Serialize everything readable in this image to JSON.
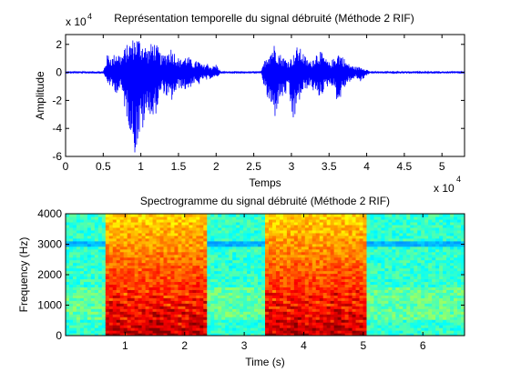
{
  "chart_data": [
    {
      "type": "line",
      "title": "Représentation temporelle du signal débruité (Méthode 2 RIF)",
      "xlabel": "Temps",
      "ylabel": "Amplitude",
      "xlim": [
        0,
        53000
      ],
      "ylim": [
        -60000,
        27000
      ],
      "x_ticks": [
        0,
        5000,
        10000,
        15000,
        20000,
        25000,
        30000,
        35000,
        40000,
        45000,
        50000
      ],
      "x_tick_labels": [
        "0",
        "0.5",
        "1",
        "1.5",
        "2",
        "2.5",
        "3",
        "3.5",
        "4",
        "4.5",
        "5"
      ],
      "x_exponent": "x 10",
      "x_exponent_power": "4",
      "y_ticks": [
        -60000,
        -40000,
        -20000,
        0,
        20000
      ],
      "y_tick_labels": [
        "-6",
        "-4",
        "-2",
        "0",
        "2"
      ],
      "y_exponent": "x 10",
      "y_exponent_power": "4",
      "line_color": "#0000ff",
      "grid": false,
      "envelope": {
        "x": [
          0,
          5000,
          5600,
          6200,
          6800,
          7400,
          8000,
          8600,
          9200,
          9800,
          10400,
          11000,
          11600,
          12200,
          12800,
          13400,
          14000,
          14600,
          15200,
          15800,
          16400,
          17000,
          17600,
          18200,
          18800,
          19400,
          20000,
          20600,
          26000,
          26600,
          27200,
          27800,
          28400,
          29000,
          29600,
          30200,
          30800,
          31400,
          32000,
          32600,
          33200,
          33800,
          34400,
          35000,
          35600,
          36200,
          36800,
          37400,
          38000,
          38600,
          39200,
          39800,
          40400,
          41000,
          53000
        ],
        "upper": [
          800,
          800,
          14000,
          11000,
          16000,
          12000,
          19000,
          22000,
          26000,
          25000,
          21000,
          17000,
          23000,
          19000,
          12000,
          15000,
          18000,
          14000,
          9000,
          12000,
          11000,
          7000,
          9000,
          5000,
          7000,
          4000,
          6000,
          800,
          800,
          12000,
          17000,
          21000,
          14000,
          11000,
          9000,
          12000,
          19000,
          16000,
          10000,
          8000,
          14000,
          16000,
          11000,
          7000,
          10000,
          15000,
          12000,
          7000,
          5000,
          4000,
          4000,
          3000,
          800,
          800,
          800
        ],
        "lower": [
          -800,
          -800,
          -8000,
          -12000,
          -15000,
          -13000,
          -30000,
          -42000,
          -59000,
          -48000,
          -40000,
          -27000,
          -37000,
          -26000,
          -13000,
          -18000,
          -22000,
          -15000,
          -11000,
          -13000,
          -12000,
          -8000,
          -10000,
          -5000,
          -6000,
          -4000,
          -4000,
          -800,
          -800,
          -16000,
          -25000,
          -33000,
          -20000,
          -18000,
          -14000,
          -38000,
          -25000,
          -16000,
          -12000,
          -10000,
          -17000,
          -18000,
          -13000,
          -9000,
          -10000,
          -24000,
          -14000,
          -8000,
          -6000,
          -4000,
          -7000,
          -3000,
          -800,
          -800,
          -800
        ]
      }
    },
    {
      "type": "heatmap",
      "title": "Spectrogramme du signal débruité (Méthode 2 RIF)",
      "xlabel": "Time (s)",
      "ylabel": "Frequency (Hz)",
      "xlim": [
        0,
        6.7
      ],
      "ylim": [
        0,
        4000
      ],
      "x_ticks": [
        1,
        2,
        3,
        4,
        5,
        6
      ],
      "x_tick_labels": [
        "1",
        "2",
        "3",
        "4",
        "5",
        "6"
      ],
      "y_ticks": [
        0,
        1000,
        2000,
        3000,
        4000
      ],
      "y_tick_labels": [
        "0",
        "1000",
        "2000",
        "3000",
        "4000"
      ],
      "colormap": "jet",
      "active_segments": [
        [
          0.68,
          2.38
        ],
        [
          3.36,
          5.04
        ]
      ],
      "noise_band_hz": [
        2900,
        3100
      ]
    }
  ]
}
